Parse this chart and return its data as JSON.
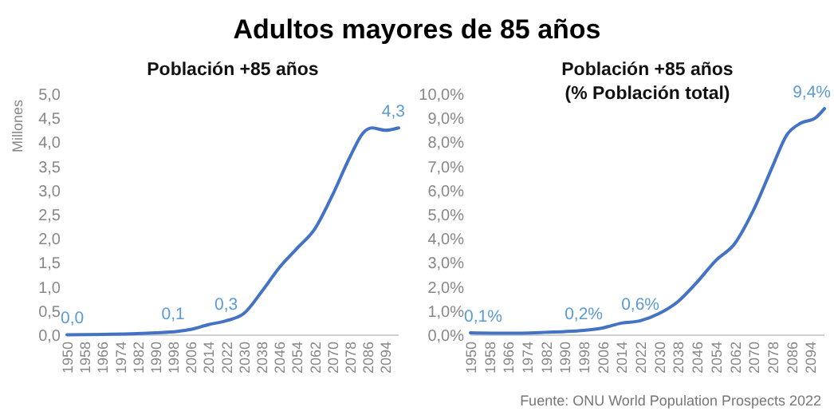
{
  "chart_data": [
    {
      "type": "line",
      "title": "Adultos mayores de 85 años",
      "subtitle": "Población +85 años",
      "ylabel": "Millones",
      "x": [
        1950,
        1970,
        1990,
        2000,
        2006,
        2014,
        2022,
        2030,
        2038,
        2046,
        2054,
        2062,
        2070,
        2078,
        2084,
        2088,
        2094,
        2100
      ],
      "series": [
        {
          "color": "#4472c4",
          "values": [
            0.01,
            0.02,
            0.05,
            0.08,
            0.12,
            0.22,
            0.3,
            0.45,
            0.9,
            1.4,
            1.8,
            2.2,
            2.9,
            3.7,
            4.2,
            4.3,
            4.25,
            4.3
          ]
        }
      ],
      "xlim": [
        1950,
        2100
      ],
      "xticks": [
        1950,
        1958,
        1966,
        1974,
        1982,
        1990,
        1998,
        2006,
        2014,
        2022,
        2030,
        2038,
        2046,
        2054,
        2062,
        2070,
        2078,
        2086,
        2094
      ],
      "ylim": [
        0,
        5
      ],
      "yticks": [
        {
          "value": 0,
          "label": "0,0"
        },
        {
          "value": 0.5,
          "label": "0,5"
        },
        {
          "value": 1,
          "label": "1,0"
        },
        {
          "value": 1.5,
          "label": "1,5"
        },
        {
          "value": 2,
          "label": "2,0"
        },
        {
          "value": 2.5,
          "label": "2,5"
        },
        {
          "value": 3,
          "label": "3,0"
        },
        {
          "value": 3.5,
          "label": "3,5"
        },
        {
          "value": 4,
          "label": "4,0"
        },
        {
          "value": 4.5,
          "label": "4,5"
        },
        {
          "value": 5,
          "label": "5,0"
        }
      ],
      "annotations": [
        {
          "text": "0,0",
          "x": 1950,
          "y": 0.01
        },
        {
          "text": "0,1",
          "x": 1998,
          "y": 0.1
        },
        {
          "text": "0,3",
          "x": 2022,
          "y": 0.3
        },
        {
          "text": "4,3",
          "x": 2100,
          "y": 4.3
        }
      ],
      "grid": false,
      "marker": "none",
      "line_style": "solid"
    },
    {
      "type": "line",
      "title": "Población +85 años\n(% Población total)",
      "x": [
        1950,
        1966,
        1982,
        1990,
        1998,
        2006,
        2014,
        2022,
        2030,
        2038,
        2046,
        2054,
        2062,
        2070,
        2078,
        2084,
        2090,
        2096,
        2100
      ],
      "series": [
        {
          "color": "#4472c4",
          "values": [
            0.1,
            0.08,
            0.12,
            0.15,
            0.2,
            0.3,
            0.5,
            0.6,
            0.9,
            1.4,
            2.2,
            3.1,
            3.8,
            5.2,
            7.0,
            8.3,
            8.8,
            9.0,
            9.4
          ]
        }
      ],
      "xlim": [
        1950,
        2100
      ],
      "xticks": [
        1950,
        1958,
        1966,
        1974,
        1982,
        1990,
        1998,
        2006,
        2014,
        2022,
        2030,
        2038,
        2046,
        2054,
        2062,
        2070,
        2078,
        2086,
        2094
      ],
      "ylim": [
        0,
        10
      ],
      "yticks": [
        {
          "value": 0,
          "label": "0,0%"
        },
        {
          "value": 1,
          "label": "1,0%"
        },
        {
          "value": 2,
          "label": "2,0%"
        },
        {
          "value": 3,
          "label": "3,0%"
        },
        {
          "value": 4,
          "label": "4,0%"
        },
        {
          "value": 5,
          "label": "5,0%"
        },
        {
          "value": 6,
          "label": "6,0%"
        },
        {
          "value": 7,
          "label": "7,0%"
        },
        {
          "value": 8,
          "label": "8,0%"
        },
        {
          "value": 9,
          "label": "9,0%"
        },
        {
          "value": 10,
          "label": "10,0%"
        }
      ],
      "annotations": [
        {
          "text": "0,1%",
          "x": 1950,
          "y": 0.1
        },
        {
          "text": "0,2%",
          "x": 1998,
          "y": 0.2
        },
        {
          "text": "0,6%",
          "x": 2022,
          "y": 0.6
        },
        {
          "text": "9,4%",
          "x": 2100,
          "y": 9.4
        },
        "Fuente: ONU World Population Prospects 2022"
      ],
      "grid": false,
      "marker": "none",
      "line_style": "solid"
    }
  ]
}
